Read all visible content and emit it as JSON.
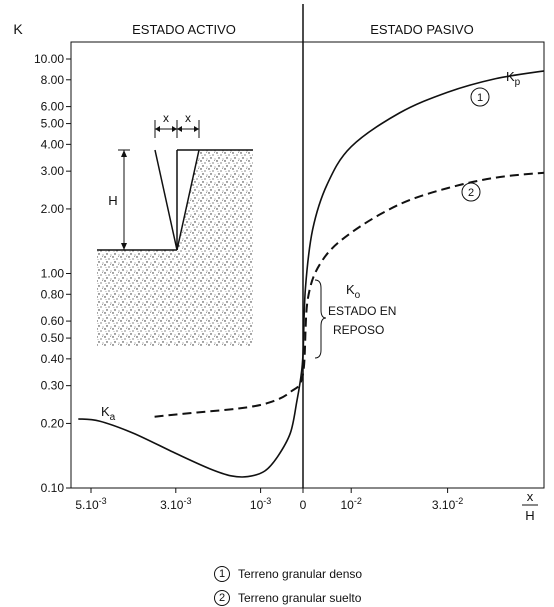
{
  "chart_data": {
    "type": "line",
    "title": "",
    "ylabel": "K",
    "xlabel": "x/H",
    "x_label_num": "x",
    "x_label_den": "H",
    "y_scale": "log",
    "ylim": [
      0.1,
      10
    ],
    "y_ticks": [
      {
        "v": 10,
        "label": "10.00"
      },
      {
        "v": 8,
        "label": "8.00"
      },
      {
        "v": 6,
        "label": "6.00"
      },
      {
        "v": 5,
        "label": "5.00"
      },
      {
        "v": 4,
        "label": "4.00"
      },
      {
        "v": 3,
        "label": "3.00"
      },
      {
        "v": 2,
        "label": "2.00"
      },
      {
        "v": 1,
        "label": "1.00"
      },
      {
        "v": 0.8,
        "label": "0.80"
      },
      {
        "v": 0.6,
        "label": "0.60"
      },
      {
        "v": 0.5,
        "label": "0.50"
      },
      {
        "v": 0.4,
        "label": "0.40"
      },
      {
        "v": 0.3,
        "label": "0.30"
      },
      {
        "v": 0.2,
        "label": "0.20"
      },
      {
        "v": 0.1,
        "label": "0.10"
      }
    ],
    "active_side": {
      "label": "ESTADO ACTIVO",
      "x_unit_max": 0.005,
      "ticks": [
        {
          "v": 0.005,
          "base": "5.10",
          "exp": "-3"
        },
        {
          "v": 0.003,
          "base": "3.10",
          "exp": "-3"
        },
        {
          "v": 0.001,
          "base": "10",
          "exp": "-3"
        }
      ]
    },
    "passive_side": {
      "label": "ESTADO PASIVO",
      "x_unit_max": 0.05,
      "ticks": [
        {
          "v": 0.01,
          "base": "10",
          "exp": "-2"
        },
        {
          "v": 0.03,
          "base": "3.10",
          "exp": "-2"
        }
      ]
    },
    "zero_label": "0",
    "series": [
      {
        "id": "dense",
        "marker": "1",
        "dashed": false,
        "points": [
          [
            -0.0053,
            0.21
          ],
          [
            -0.0048,
            0.205
          ],
          [
            -0.004,
            0.18
          ],
          [
            -0.003,
            0.145
          ],
          [
            -0.0022,
            0.123
          ],
          [
            -0.0017,
            0.114
          ],
          [
            -0.0013,
            0.113
          ],
          [
            -0.0009,
            0.12
          ],
          [
            -0.0006,
            0.14
          ],
          [
            -0.0003,
            0.18
          ],
          [
            -0.00015,
            0.25
          ],
          [
            -5e-05,
            0.33
          ],
          [
            0.0,
            0.42
          ],
          [
            0.0005,
            0.85
          ],
          [
            0.002,
            1.6
          ],
          [
            0.005,
            2.6
          ],
          [
            0.01,
            3.9
          ],
          [
            0.02,
            5.6
          ],
          [
            0.03,
            7.0
          ],
          [
            0.04,
            8.1
          ],
          [
            0.05,
            8.8
          ]
        ]
      },
      {
        "id": "loose",
        "marker": "2",
        "dashed": true,
        "points": [
          [
            -0.0035,
            0.215
          ],
          [
            -0.0025,
            0.225
          ],
          [
            -0.0015,
            0.235
          ],
          [
            -0.0008,
            0.25
          ],
          [
            -0.0003,
            0.28
          ],
          [
            0.0,
            0.34
          ],
          [
            0.001,
            0.76
          ],
          [
            0.004,
            1.15
          ],
          [
            0.01,
            1.55
          ],
          [
            0.02,
            2.1
          ],
          [
            0.03,
            2.5
          ],
          [
            0.04,
            2.8
          ],
          [
            0.05,
            2.95
          ]
        ]
      }
    ],
    "annotations": {
      "kp": {
        "base": "K",
        "sub": "p"
      },
      "ka": {
        "base": "K",
        "sub": "a"
      },
      "ko": {
        "base": "K",
        "sub": "o"
      },
      "ko_text_1": "ESTADO EN",
      "ko_text_2": "REPOSO",
      "marker_1": "1",
      "marker_2": "2"
    },
    "inset": {
      "x_left": "x",
      "x_right": "x",
      "h_label": "H"
    },
    "legend": [
      {
        "marker": "1",
        "text": "Terreno granular denso"
      },
      {
        "marker": "2",
        "text": "Terreno granular suelto"
      }
    ]
  }
}
